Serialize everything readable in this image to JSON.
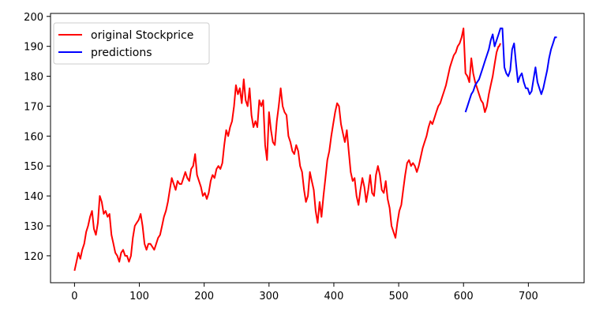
{
  "chart_data": {
    "type": "line",
    "title": "",
    "xlabel": "",
    "ylabel": "",
    "xlim": [
      -37,
      786
    ],
    "ylim": [
      111,
      201
    ],
    "x_ticks": [
      0,
      100,
      200,
      300,
      400,
      500,
      600,
      700
    ],
    "y_ticks": [
      120,
      130,
      140,
      150,
      160,
      170,
      180,
      190,
      200
    ],
    "grid": false,
    "legend_position": "top-left",
    "series": [
      {
        "name": "original Stockprice",
        "color": "#ff0000",
        "points": [
          [
            0,
            115
          ],
          [
            3,
            118
          ],
          [
            6,
            121
          ],
          [
            9,
            119
          ],
          [
            12,
            122
          ],
          [
            15,
            124
          ],
          [
            18,
            128
          ],
          [
            21,
            130
          ],
          [
            24,
            133
          ],
          [
            27,
            135
          ],
          [
            30,
            129
          ],
          [
            33,
            127
          ],
          [
            36,
            131
          ],
          [
            39,
            140
          ],
          [
            42,
            138
          ],
          [
            45,
            134
          ],
          [
            48,
            135
          ],
          [
            51,
            133
          ],
          [
            54,
            134
          ],
          [
            57,
            127
          ],
          [
            60,
            124
          ],
          [
            63,
            121
          ],
          [
            66,
            120
          ],
          [
            69,
            118
          ],
          [
            72,
            121
          ],
          [
            75,
            122
          ],
          [
            78,
            120
          ],
          [
            81,
            120
          ],
          [
            84,
            118
          ],
          [
            87,
            120
          ],
          [
            90,
            126
          ],
          [
            93,
            130
          ],
          [
            96,
            131
          ],
          [
            99,
            132
          ],
          [
            102,
            134
          ],
          [
            105,
            130
          ],
          [
            108,
            124
          ],
          [
            111,
            122
          ],
          [
            114,
            124
          ],
          [
            117,
            124
          ],
          [
            120,
            123
          ],
          [
            123,
            122
          ],
          [
            126,
            124
          ],
          [
            129,
            126
          ],
          [
            132,
            127
          ],
          [
            135,
            130
          ],
          [
            138,
            133
          ],
          [
            141,
            135
          ],
          [
            144,
            138
          ],
          [
            147,
            142
          ],
          [
            150,
            146
          ],
          [
            153,
            144
          ],
          [
            156,
            142
          ],
          [
            159,
            145
          ],
          [
            162,
            144
          ],
          [
            165,
            144
          ],
          [
            168,
            146
          ],
          [
            171,
            148
          ],
          [
            174,
            146
          ],
          [
            177,
            145
          ],
          [
            180,
            149
          ],
          [
            183,
            150
          ],
          [
            186,
            154
          ],
          [
            189,
            147
          ],
          [
            192,
            145
          ],
          [
            195,
            143
          ],
          [
            198,
            140
          ],
          [
            201,
            141
          ],
          [
            204,
            139
          ],
          [
            207,
            141
          ],
          [
            210,
            145
          ],
          [
            213,
            147
          ],
          [
            216,
            146
          ],
          [
            219,
            149
          ],
          [
            222,
            150
          ],
          [
            225,
            149
          ],
          [
            228,
            151
          ],
          [
            231,
            157
          ],
          [
            234,
            162
          ],
          [
            237,
            160
          ],
          [
            240,
            163
          ],
          [
            243,
            165
          ],
          [
            246,
            170
          ],
          [
            249,
            177
          ],
          [
            252,
            174
          ],
          [
            255,
            176
          ],
          [
            258,
            171
          ],
          [
            261,
            179
          ],
          [
            264,
            172
          ],
          [
            267,
            170
          ],
          [
            270,
            176
          ],
          [
            273,
            167
          ],
          [
            276,
            163
          ],
          [
            279,
            165
          ],
          [
            282,
            163
          ],
          [
            285,
            172
          ],
          [
            288,
            170
          ],
          [
            291,
            172
          ],
          [
            294,
            157
          ],
          [
            297,
            152
          ],
          [
            300,
            168
          ],
          [
            303,
            162
          ],
          [
            306,
            158
          ],
          [
            309,
            157
          ],
          [
            312,
            165
          ],
          [
            315,
            170
          ],
          [
            318,
            176
          ],
          [
            321,
            170
          ],
          [
            324,
            168
          ],
          [
            327,
            167
          ],
          [
            330,
            160
          ],
          [
            333,
            158
          ],
          [
            336,
            155
          ],
          [
            339,
            154
          ],
          [
            342,
            157
          ],
          [
            345,
            155
          ],
          [
            348,
            150
          ],
          [
            351,
            148
          ],
          [
            354,
            142
          ],
          [
            357,
            138
          ],
          [
            360,
            140
          ],
          [
            363,
            148
          ],
          [
            366,
            145
          ],
          [
            369,
            142
          ],
          [
            372,
            135
          ],
          [
            375,
            131
          ],
          [
            378,
            138
          ],
          [
            381,
            133
          ],
          [
            384,
            140
          ],
          [
            387,
            146
          ],
          [
            390,
            152
          ],
          [
            393,
            155
          ],
          [
            396,
            160
          ],
          [
            399,
            164
          ],
          [
            402,
            168
          ],
          [
            405,
            171
          ],
          [
            408,
            170
          ],
          [
            411,
            164
          ],
          [
            414,
            161
          ],
          [
            417,
            158
          ],
          [
            420,
            162
          ],
          [
            423,
            155
          ],
          [
            426,
            148
          ],
          [
            429,
            145
          ],
          [
            432,
            146
          ],
          [
            435,
            140
          ],
          [
            438,
            137
          ],
          [
            441,
            142
          ],
          [
            444,
            146
          ],
          [
            447,
            143
          ],
          [
            450,
            138
          ],
          [
            453,
            142
          ],
          [
            456,
            147
          ],
          [
            459,
            141
          ],
          [
            462,
            140
          ],
          [
            465,
            147
          ],
          [
            468,
            150
          ],
          [
            471,
            147
          ],
          [
            474,
            142
          ],
          [
            477,
            141
          ],
          [
            480,
            145
          ],
          [
            483,
            139
          ],
          [
            486,
            136
          ],
          [
            489,
            130
          ],
          [
            492,
            128
          ],
          [
            495,
            126
          ],
          [
            498,
            131
          ],
          [
            501,
            135
          ],
          [
            504,
            137
          ],
          [
            507,
            142
          ],
          [
            510,
            147
          ],
          [
            513,
            151
          ],
          [
            516,
            152
          ],
          [
            519,
            150
          ],
          [
            522,
            151
          ],
          [
            525,
            150
          ],
          [
            528,
            148
          ],
          [
            531,
            150
          ],
          [
            534,
            153
          ],
          [
            537,
            156
          ],
          [
            540,
            158
          ],
          [
            543,
            160
          ],
          [
            546,
            163
          ],
          [
            549,
            165
          ],
          [
            552,
            164
          ],
          [
            555,
            166
          ],
          [
            558,
            168
          ],
          [
            561,
            170
          ],
          [
            564,
            171
          ],
          [
            567,
            173
          ],
          [
            570,
            175
          ],
          [
            573,
            177
          ],
          [
            576,
            180
          ],
          [
            579,
            183
          ],
          [
            582,
            185
          ],
          [
            585,
            187
          ],
          [
            588,
            188
          ],
          [
            591,
            190
          ],
          [
            594,
            191
          ],
          [
            597,
            193
          ],
          [
            600,
            196
          ],
          [
            603,
            181
          ],
          [
            606,
            180
          ],
          [
            609,
            178
          ],
          [
            612,
            186
          ],
          [
            615,
            181
          ],
          [
            618,
            178
          ],
          [
            621,
            176
          ],
          [
            624,
            174
          ],
          [
            627,
            172
          ],
          [
            630,
            171
          ],
          [
            633,
            168
          ],
          [
            636,
            170
          ],
          [
            639,
            174
          ],
          [
            642,
            177
          ],
          [
            645,
            180
          ],
          [
            648,
            184
          ],
          [
            651,
            188
          ],
          [
            654,
            190
          ],
          [
            655,
            190
          ],
          [
            657,
            191
          ]
        ]
      },
      {
        "name": "predictions",
        "color": "#0000ff",
        "points": [
          [
            603,
            168
          ],
          [
            606,
            170
          ],
          [
            609,
            172
          ],
          [
            612,
            174
          ],
          [
            615,
            175
          ],
          [
            618,
            177
          ],
          [
            621,
            178
          ],
          [
            624,
            179
          ],
          [
            627,
            181
          ],
          [
            630,
            183
          ],
          [
            633,
            185
          ],
          [
            636,
            187
          ],
          [
            639,
            189
          ],
          [
            642,
            192
          ],
          [
            645,
            194
          ],
          [
            648,
            190
          ],
          [
            651,
            192
          ],
          [
            654,
            194
          ],
          [
            657,
            196
          ],
          [
            660,
            196
          ],
          [
            663,
            183
          ],
          [
            666,
            181
          ],
          [
            669,
            180
          ],
          [
            672,
            182
          ],
          [
            675,
            189
          ],
          [
            678,
            191
          ],
          [
            681,
            184
          ],
          [
            684,
            178
          ],
          [
            687,
            180
          ],
          [
            690,
            181
          ],
          [
            693,
            178
          ],
          [
            696,
            176
          ],
          [
            699,
            176
          ],
          [
            702,
            174
          ],
          [
            705,
            175
          ],
          [
            708,
            179
          ],
          [
            711,
            183
          ],
          [
            714,
            178
          ],
          [
            717,
            176
          ],
          [
            720,
            174
          ],
          [
            723,
            176
          ],
          [
            726,
            179
          ],
          [
            729,
            182
          ],
          [
            732,
            186
          ],
          [
            735,
            189
          ],
          [
            738,
            191
          ],
          [
            741,
            193
          ],
          [
            744,
            193
          ]
        ]
      }
    ]
  }
}
